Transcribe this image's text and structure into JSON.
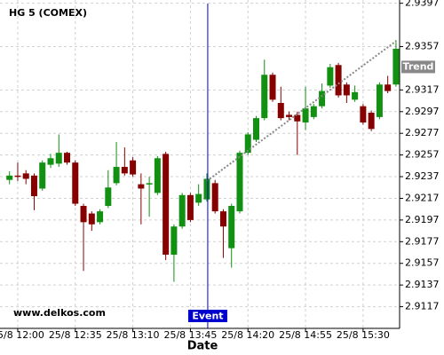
{
  "chart_data": {
    "type": "candlestick",
    "title": "HG 5 (COMEX)",
    "watermark": "www.delkos.com",
    "x_label": "Date",
    "categories": [
      null,
      "25/8 12:00",
      null,
      null,
      null,
      null,
      null,
      null,
      "25/8 12:35",
      null,
      null,
      null,
      null,
      null,
      null,
      "25/8 13:10",
      null,
      null,
      null,
      null,
      null,
      null,
      "25/8 13:45",
      null,
      null,
      null,
      null,
      null,
      null,
      "25/8 14:20",
      null,
      null,
      null,
      null,
      null,
      null,
      "25/8 14:55",
      null,
      null,
      null,
      null,
      null,
      null,
      "25/8 15:30",
      null,
      null,
      null,
      null
    ],
    "open": [
      2.9234,
      2.9238,
      2.924,
      2.9238,
      2.9226,
      2.9248,
      2.9249,
      2.9259,
      2.925,
      2.921,
      2.9203,
      2.9195,
      2.921,
      2.9231,
      2.9246,
      2.9252,
      2.923,
      2.923,
      2.9222,
      2.9258,
      2.9165,
      2.9191,
      2.922,
      2.9213,
      2.9216,
      2.9231,
      2.9205,
      2.9171,
      2.9205,
      2.9259,
      2.9271,
      2.9291,
      2.9331,
      2.9305,
      2.9294,
      2.9294,
      2.9287,
      2.9292,
      2.9302,
      2.9321,
      2.934,
      2.9322,
      2.9308,
      2.9302,
      2.9296,
      2.9292,
      2.9322,
      2.9322
    ],
    "high": [
      2.9242,
      2.925,
      2.9243,
      2.924,
      2.9252,
      2.9258,
      2.9276,
      2.926,
      2.9252,
      2.9212,
      2.9205,
      2.9207,
      2.9243,
      2.9269,
      2.9264,
      2.9255,
      2.924,
      2.9237,
      2.9256,
      2.926,
      2.9193,
      2.9222,
      2.9222,
      2.923,
      2.924,
      2.9234,
      2.9207,
      2.9212,
      2.9261,
      2.9278,
      2.9293,
      2.9345,
      2.9333,
      2.932,
      2.9297,
      2.9297,
      2.932,
      2.9304,
      2.9323,
      2.9341,
      2.9342,
      2.9324,
      2.9321,
      2.9304,
      2.9298,
      2.9324,
      2.933,
      2.9363
    ],
    "low": [
      2.923,
      2.9233,
      2.923,
      2.9206,
      2.9224,
      2.9245,
      2.9246,
      2.9248,
      2.921,
      2.915,
      2.9187,
      2.9193,
      2.9208,
      2.9229,
      2.9238,
      2.9237,
      2.9193,
      2.92,
      2.922,
      2.916,
      2.914,
      2.9189,
      2.9195,
      2.921,
      2.9214,
      2.9203,
      2.9162,
      2.9153,
      2.9203,
      2.9257,
      2.9269,
      2.9289,
      2.9306,
      2.9289,
      2.9289,
      2.9257,
      2.928,
      2.929,
      2.93,
      2.9319,
      2.931,
      2.9305,
      2.9306,
      2.9285,
      2.9279,
      2.929,
      2.9314,
      2.932
    ],
    "close": [
      2.9238,
      2.9237,
      2.9235,
      2.9219,
      2.925,
      2.9254,
      2.9259,
      2.925,
      2.9212,
      2.9195,
      2.9193,
      2.9205,
      2.9227,
      2.9246,
      2.924,
      2.9239,
      2.9226,
      2.9231,
      2.9254,
      2.9165,
      2.9191,
      2.922,
      2.9197,
      2.9221,
      2.9235,
      2.9205,
      2.9191,
      2.921,
      2.9259,
      2.9276,
      2.9291,
      2.9331,
      2.9308,
      2.9291,
      2.9292,
      2.9288,
      2.93,
      2.9302,
      2.9316,
      2.9338,
      2.9312,
      2.9312,
      2.9315,
      2.9287,
      2.9281,
      2.9322,
      2.9316,
      2.9355
    ],
    "up_color": "#119011",
    "down_color": "#870000",
    "ylim": [
      2.9097,
      2.94
    ],
    "yticks": [
      2.9397,
      2.9357,
      2.9317,
      2.9297,
      2.9277,
      2.9257,
      2.9237,
      2.9217,
      2.9197,
      2.9177,
      2.9157,
      2.9137,
      2.9117
    ],
    "grid": true,
    "event": {
      "label": "Event",
      "index": 24,
      "color": "#0000cc"
    },
    "trend": {
      "label": "Trend",
      "start_index": 24,
      "end_index": 47,
      "values": [
        2.9233,
        2.9362
      ],
      "color": "#888888"
    }
  }
}
